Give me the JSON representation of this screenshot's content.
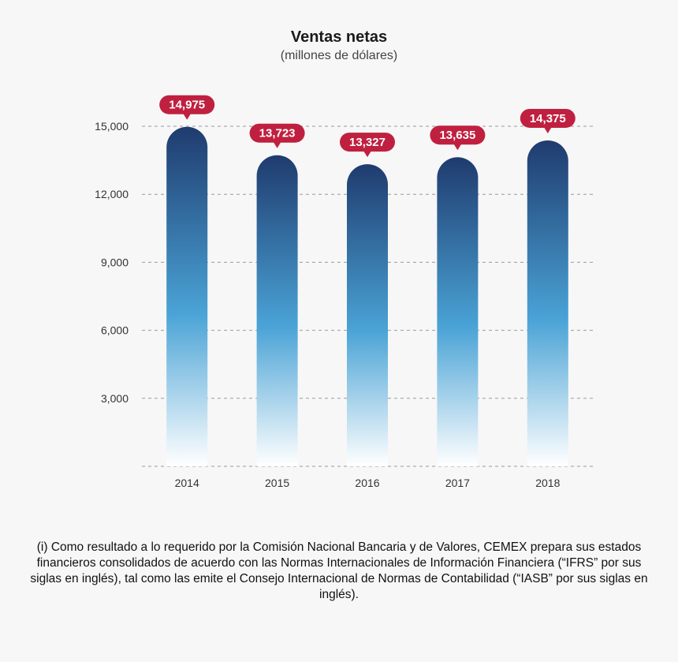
{
  "chart_data": {
    "type": "bar",
    "title": "Ventas netas",
    "subtitle": "(millones de dólares)",
    "categories": [
      "2014",
      "2015",
      "2016",
      "2017",
      "2018"
    ],
    "values": [
      14975,
      13723,
      13327,
      13635,
      14375
    ],
    "value_labels": [
      "14,975",
      "13,723",
      "13,327",
      "13,635",
      "14,375"
    ],
    "ylim": [
      0,
      15000
    ],
    "yticks": [
      3000,
      6000,
      9000,
      12000,
      15000
    ],
    "ytick_labels": [
      "3,000",
      "6,000",
      "9,000",
      "12,000",
      "15,000"
    ],
    "grid": true,
    "colors": {
      "bar_top": "#1f3b6e",
      "bar_mid": "#4aa3d6",
      "bar_bottom": "#ffffff",
      "label_bg": "#c0203f",
      "label_text": "#ffffff",
      "grid": "#9a9a9a"
    }
  },
  "footnote": "(i) Como resultado a lo requerido por la Comisión Nacional Bancaria y de Valores, CEMEX prepara sus estados financieros consolidados de acuerdo con las Normas Internacionales de Información Financiera (“IFRS” por sus siglas en inglés), tal como las emite el Consejo Internacional de Normas de Contabilidad (“IASB” por sus siglas en inglés)."
}
